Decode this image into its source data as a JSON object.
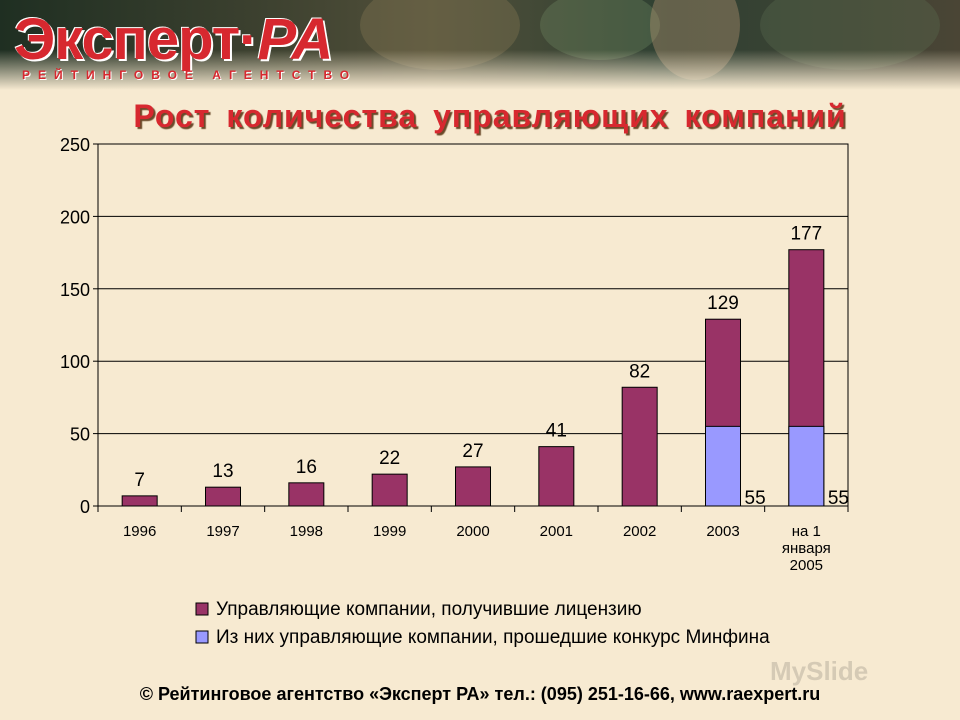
{
  "header": {
    "logo_main": "Эксперт·",
    "logo_ra": "РА",
    "logo_sub": "РЕЙТИНГОВОЕ АГЕНТСТВО"
  },
  "slide": {
    "title": "Рост количества управляющих компаний"
  },
  "chart_data": {
    "type": "bar",
    "stacked": true,
    "categories": [
      [
        "1996"
      ],
      [
        "1997"
      ],
      [
        "1998"
      ],
      [
        "1999"
      ],
      [
        "2000"
      ],
      [
        "2001"
      ],
      [
        "2002"
      ],
      [
        "2003"
      ],
      [
        "на 1",
        "января",
        "2005"
      ]
    ],
    "series": [
      {
        "name": "Управляющие компании, получившие лицензию",
        "color": "#993366",
        "values": [
          7,
          13,
          16,
          22,
          27,
          41,
          82,
          129,
          177
        ]
      },
      {
        "name": "Из них управляющие компании, прошедшие конкурс Минфина",
        "color": "#9999ff",
        "values": [
          null,
          null,
          null,
          null,
          null,
          null,
          null,
          55,
          55
        ]
      }
    ],
    "ylim": [
      0,
      250
    ],
    "yticks": [
      0,
      50,
      100,
      150,
      200,
      250
    ],
    "grid": true,
    "legend_position": "bottom"
  },
  "footer": {
    "text": "© Рейтинговое агентство «Эксперт РА» тел.: (095) 251-16-66, www.raexpert.ru"
  },
  "watermark": "MySlide"
}
